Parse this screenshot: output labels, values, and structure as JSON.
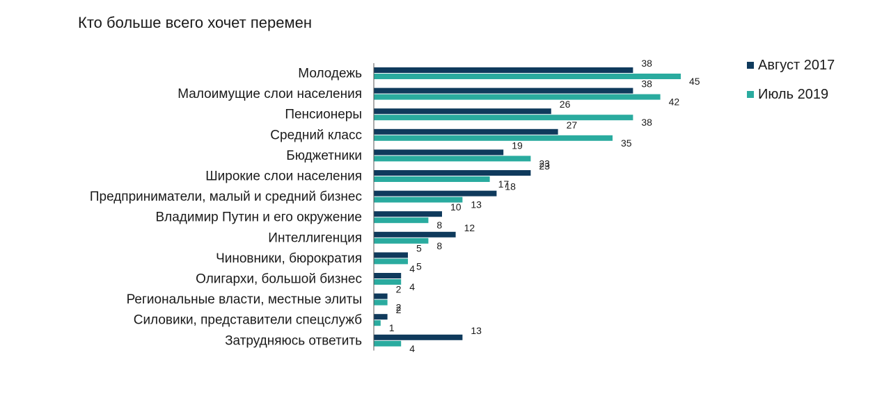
{
  "chart_data": {
    "type": "bar",
    "orientation": "horizontal",
    "title": "Кто больше всего хочет перемен",
    "categories": [
      "Молодежь",
      "Малоимущие слои населения",
      "Пенсионеры",
      "Средний класс",
      "Бюджетники",
      "Широкие слои населения",
      "Предприниматели, малый и средний бизнес",
      "Владимир Путин и его окружение",
      "Интеллигенция",
      "Чиновники, бюрократия",
      "Олигархи, большой бизнес",
      "Региональные власти, местные элиты",
      "Силовики, представители спецслужб",
      "Затрудняюсь ответить"
    ],
    "series": [
      {
        "name": "Август 2017",
        "color": "#0f3a5c",
        "values": [
          38,
          38,
          26,
          27,
          19,
          23,
          18,
          10,
          12,
          5,
          4,
          2,
          2,
          13
        ]
      },
      {
        "name": "Июль 2019",
        "color": "#2aab9f",
        "values": [
          45,
          42,
          38,
          35,
          23,
          17,
          13,
          8,
          8,
          5,
          4,
          2,
          1,
          4
        ]
      }
    ],
    "xlim": [
      0,
      45
    ],
    "grid": false,
    "legend_position": "top-right",
    "data_labels": true
  }
}
